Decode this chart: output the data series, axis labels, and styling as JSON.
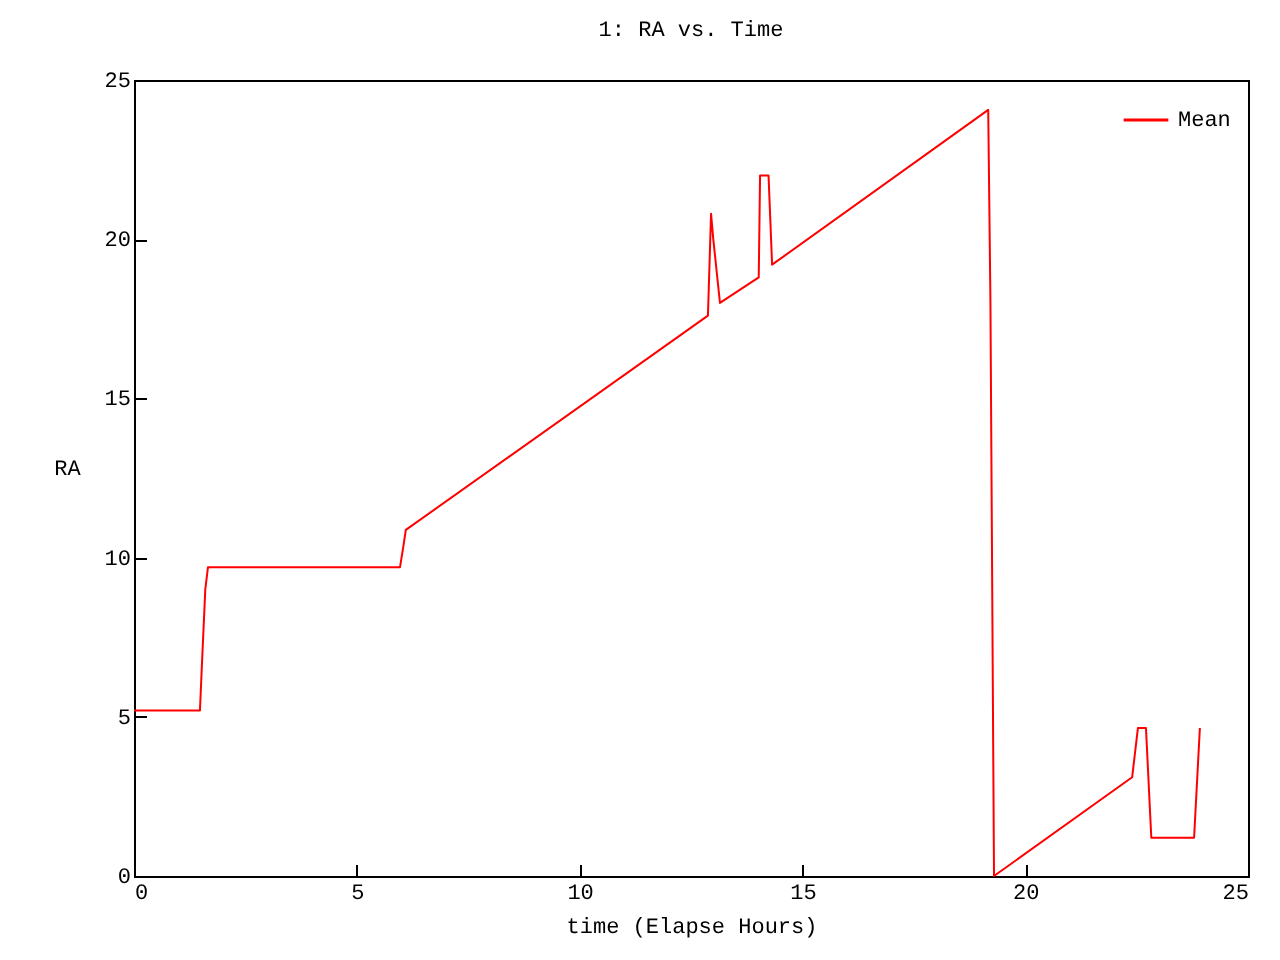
{
  "chart_data": {
    "type": "line",
    "title": "1: RA vs. Time",
    "xlabel": "time (Elapse Hours)",
    "ylabel": "RA",
    "x": [
      0,
      1.48,
      1.52,
      1.6,
      1.66,
      5.97,
      6.05,
      6.1,
      12.88,
      12.95,
      13.0,
      13.15,
      14.02,
      14.05,
      14.24,
      14.32,
      19.17,
      19.22,
      19.3,
      22.4,
      22.53,
      22.71,
      22.83,
      23.79,
      23.92
    ],
    "series": [
      {
        "name": "Mean",
        "color": "#ff0000",
        "values": [
          5.2,
          5.2,
          6.5,
          9.0,
          9.7,
          9.7,
          10.4,
          10.87,
          17.6,
          20.8,
          20.0,
          18.0,
          18.8,
          22.0,
          22.0,
          19.2,
          24.06,
          18.0,
          0,
          3.1,
          4.65,
          4.65,
          1.2,
          1.2,
          4.65
        ]
      }
    ],
    "xlim": [
      0,
      25
    ],
    "xticks": [
      0,
      5,
      10,
      15,
      20,
      25
    ],
    "ylim": [
      0,
      25
    ],
    "yticks": [
      0,
      5,
      10,
      15,
      20,
      25
    ],
    "grid": false,
    "legend": "top right",
    "line_style": "solid",
    "marker": "none"
  }
}
